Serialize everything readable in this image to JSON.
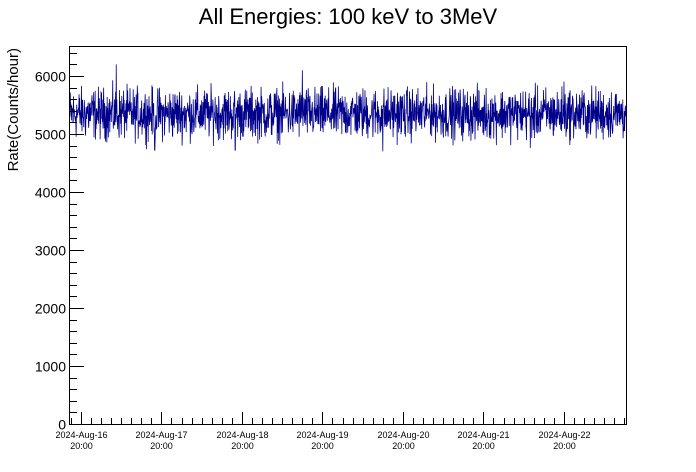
{
  "chart_data": {
    "type": "line",
    "title": "All Energies:  100 keV to 3MeV",
    "xlabel": "",
    "ylabel": "Rate(Counts/hour)",
    "ylim": [
      0,
      6500
    ],
    "yticks": [
      0,
      1000,
      2000,
      3000,
      4000,
      5000,
      6000
    ],
    "xlim": [
      "2024-Aug-16 16:45",
      "2024-Aug-23 14:30"
    ],
    "xticks": [
      {
        "time": "2024-Aug-16 20:00",
        "date_label": "2024-Aug-16",
        "time_label": "20:00"
      },
      {
        "time": "2024-Aug-17 20:00",
        "date_label": "2024-Aug-17",
        "time_label": "20:00"
      },
      {
        "time": "2024-Aug-18 20:00",
        "date_label": "2024-Aug-18",
        "time_label": "20:00"
      },
      {
        "time": "2024-Aug-19 20:00",
        "date_label": "2024-Aug-19",
        "time_label": "20:00"
      },
      {
        "time": "2024-Aug-20 20:00",
        "date_label": "2024-Aug-20",
        "time_label": "20:00"
      },
      {
        "time": "2024-Aug-21 20:00",
        "date_label": "2024-Aug-21",
        "time_label": "20:00"
      },
      {
        "time": "2024-Aug-22 20:00",
        "date_label": "2024-Aug-22",
        "time_label": "20:00"
      }
    ],
    "grid": false,
    "line_color": "#00008b",
    "series": [
      {
        "name": "",
        "mean": 5350,
        "typical_min": 4800,
        "typical_max": 5900,
        "samples": [
          {
            "x": "2024-Aug-16 16:45",
            "y": 5300
          },
          {
            "x": "2024-Aug-16 22:00",
            "y": 5350
          },
          {
            "x": "2024-Aug-17 04:00",
            "y": 5450
          },
          {
            "x": "2024-Aug-17 06:30",
            "y": 6200
          },
          {
            "x": "2024-Aug-17 12:00",
            "y": 5400
          },
          {
            "x": "2024-Aug-17 18:00",
            "y": 4720
          },
          {
            "x": "2024-Aug-18 06:00",
            "y": 5300
          },
          {
            "x": "2024-Aug-18 18:00",
            "y": 4720
          },
          {
            "x": "2024-Aug-19 04:00",
            "y": 5350
          },
          {
            "x": "2024-Aug-19 14:00",
            "y": 6100
          },
          {
            "x": "2024-Aug-20 04:00",
            "y": 5300
          },
          {
            "x": "2024-Aug-20 14:00",
            "y": 4700
          },
          {
            "x": "2024-Aug-21 04:00",
            "y": 5400
          },
          {
            "x": "2024-Aug-21 20:00",
            "y": 5350
          },
          {
            "x": "2024-Aug-22 10:00",
            "y": 4760
          },
          {
            "x": "2024-Aug-22 20:00",
            "y": 5900
          },
          {
            "x": "2024-Aug-23 14:30",
            "y": 5350
          }
        ]
      }
    ]
  }
}
